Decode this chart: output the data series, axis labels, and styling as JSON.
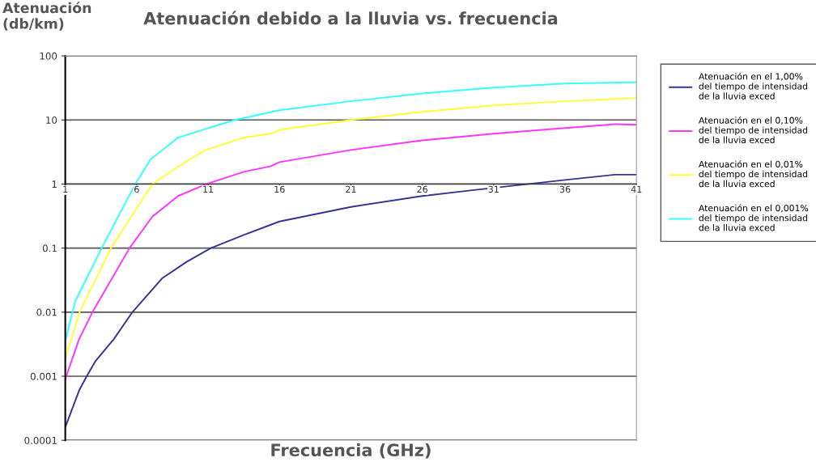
{
  "chart_data": {
    "type": "line",
    "title": "Atenuación debido a la lluvia vs. frecuencia",
    "xlabel": "Frecuencia (GHz)",
    "ylabel": "Atenuación\n(db/km)",
    "log": "y",
    "grid": "y",
    "legend": "right",
    "marker": "none",
    "line_style": "solid",
    "xlim": [
      1,
      41
    ],
    "xticks": [
      1,
      6,
      11,
      16,
      21,
      26,
      31,
      36,
      41
    ],
    "ylim": [
      0.0001,
      100
    ],
    "yticks": [
      0.0001,
      0.001,
      0.01,
      0.1,
      1,
      10,
      100
    ],
    "series": [
      {
        "name": "Atenuación en el 1,00%\ndel tiempo de intensidad\nde la lluvia exced",
        "color": "#333399",
        "x": [
          1,
          1.97,
          2.5,
          3.1,
          4.4,
          5.7,
          7.8,
          9.5,
          11.2,
          13.5,
          16,
          21,
          26,
          29.5,
          36,
          39.5,
          41
        ],
        "values": [
          0.00016,
          0.0006,
          0.001,
          0.0017,
          0.0038,
          0.01,
          0.034,
          0.061,
          0.1,
          0.16,
          0.26,
          0.44,
          0.65,
          0.8,
          1.16,
          1.4,
          1.4
        ]
      },
      {
        "name": "Atenuación en el 0,10%\ndel tiempo de intensidad\nde la lluvia exced",
        "color": "#ff33ff",
        "x": [
          1,
          1.97,
          2.9,
          5.5,
          7.1,
          8.9,
          10.9,
          13.5,
          15.4,
          16,
          21,
          26,
          31,
          36,
          39.5,
          41
        ],
        "values": [
          0.0009,
          0.0038,
          0.01,
          0.1,
          0.31,
          0.65,
          1,
          1.55,
          1.9,
          2.2,
          3.4,
          4.8,
          6.1,
          7.5,
          8.6,
          8.4
        ]
      },
      {
        "name": "Atenuación en el 0,01%\ndel tiempo de intensidad\nde la lluvia exced",
        "color": "#ffff33",
        "x": [
          1,
          2.0,
          4.2,
          7.1,
          8.8,
          10.8,
          13.5,
          15.4,
          16,
          21,
          26,
          31,
          36,
          41
        ],
        "values": [
          0.0019,
          0.01,
          0.1,
          1,
          1.8,
          3.4,
          5.3,
          6.1,
          7.0,
          10,
          13.4,
          16.9,
          19.6,
          22
        ]
      },
      {
        "name": "Atenuación en el 0,001%\ndel tiempo de intensidad\nde la lluvia exced",
        "color": "#33ffff",
        "x": [
          1,
          1.68,
          3.55,
          5.9,
          6.96,
          8.9,
          11.2,
          12.9,
          16,
          21,
          26,
          31,
          36,
          41
        ],
        "values": [
          0.0035,
          0.0145,
          0.1,
          1,
          2.4,
          5.3,
          7.7,
          10,
          14.2,
          19.6,
          26,
          32,
          37,
          39
        ]
      }
    ]
  }
}
